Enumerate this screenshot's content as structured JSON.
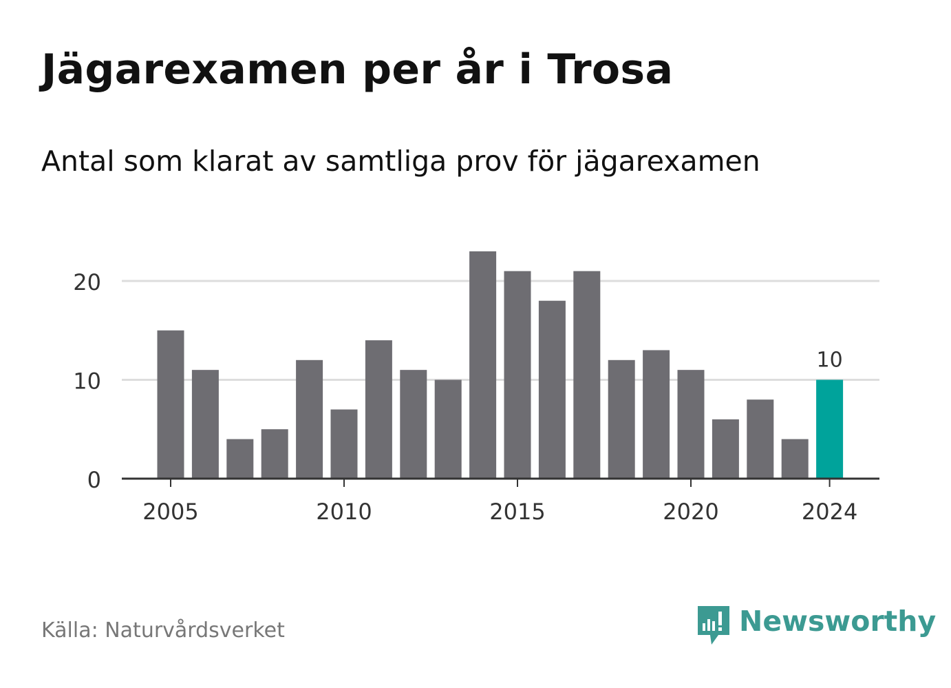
{
  "title": "Jägarexamen per år i Trosa",
  "subtitle": "Antal som klarat av samtliga prov för jägarexamen",
  "source": "Källa: Naturvårdsverket",
  "logo": {
    "text": "Newsworthy",
    "icon": "bar-chart-speech-bubble-icon",
    "color": "#3c9a92"
  },
  "colors": {
    "bar": "#6e6d72",
    "highlight": "#00a39b",
    "grid": "#dddddd",
    "axis": "#333333",
    "text": "#333333"
  },
  "chart_data": {
    "type": "bar",
    "title": "Jägarexamen per år i Trosa",
    "subtitle": "Antal som klarat av samtliga prov för jägarexamen",
    "xlabel": "",
    "ylabel": "",
    "categories": [
      2005,
      2006,
      2007,
      2008,
      2009,
      2010,
      2011,
      2012,
      2013,
      2014,
      2015,
      2016,
      2017,
      2018,
      2019,
      2020,
      2021,
      2022,
      2023,
      2024
    ],
    "values": [
      15,
      11,
      4,
      5,
      12,
      7,
      14,
      11,
      10,
      23,
      21,
      18,
      21,
      12,
      13,
      11,
      6,
      8,
      4,
      10
    ],
    "highlight_index": 19,
    "highlight_label": "10",
    "ylim": [
      0,
      23
    ],
    "yticks": [
      0,
      10,
      20
    ],
    "xticks": [
      2005,
      2010,
      2015,
      2020,
      2024
    ],
    "grid": true,
    "legend": "none"
  }
}
